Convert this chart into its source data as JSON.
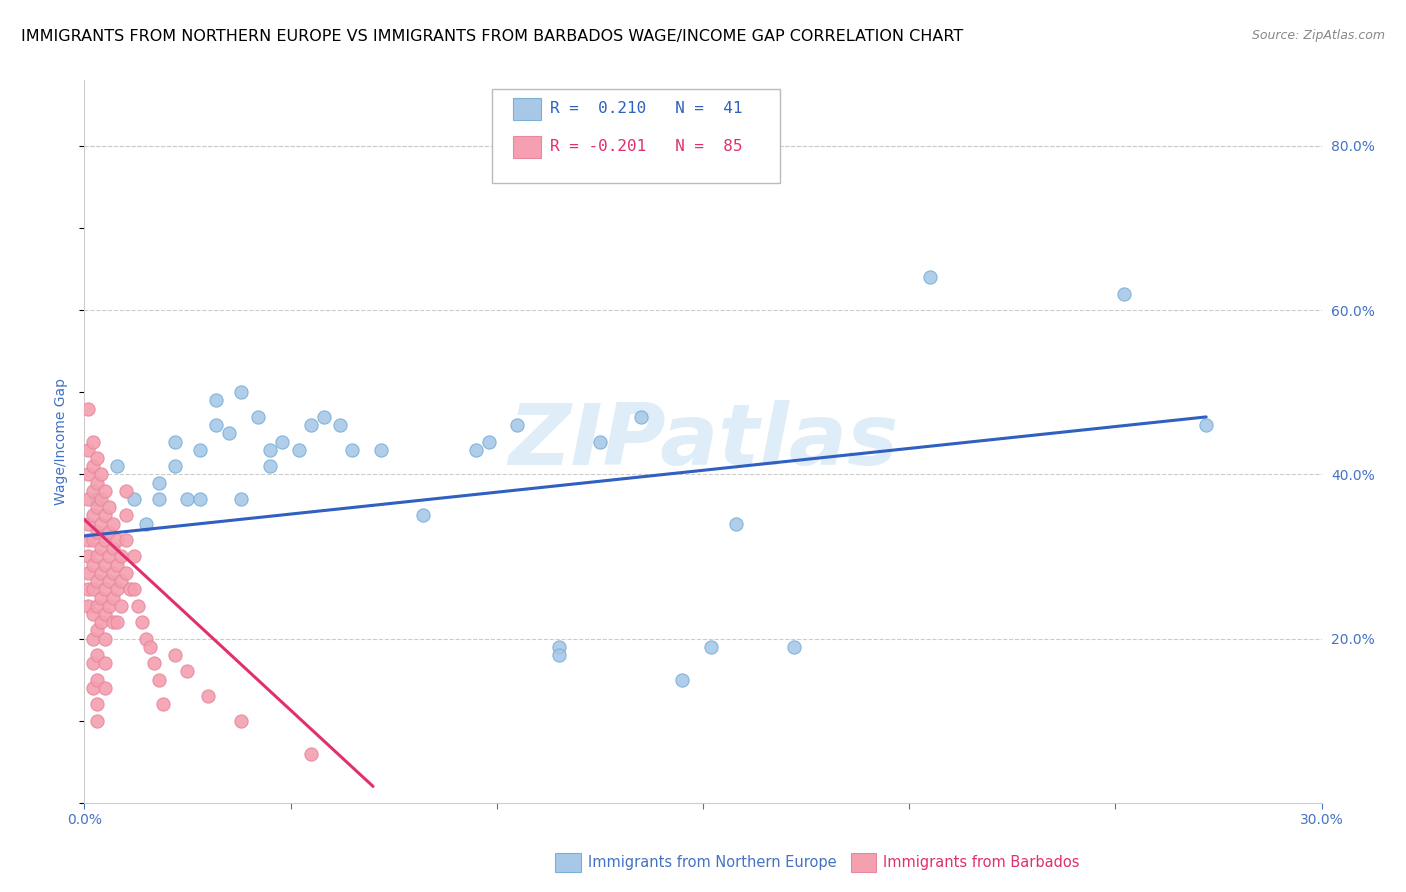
{
  "title": "IMMIGRANTS FROM NORTHERN EUROPE VS IMMIGRANTS FROM BARBADOS WAGE/INCOME GAP CORRELATION CHART",
  "source": "Source: ZipAtlas.com",
  "ylabel": "Wage/Income Gap",
  "xlim": [
    0.0,
    0.3
  ],
  "ylim": [
    0.0,
    0.88
  ],
  "xticks": [
    0.0,
    0.05,
    0.1,
    0.15,
    0.2,
    0.25,
    0.3
  ],
  "xticklabels": [
    "0.0%",
    "",
    "",
    "",
    "",
    "",
    "30.0%"
  ],
  "yticks_right": [
    0.2,
    0.4,
    0.6,
    0.8
  ],
  "ytick_labels_right": [
    "20.0%",
    "40.0%",
    "60.0%",
    "80.0%"
  ],
  "blue_color": "#a8c8e8",
  "pink_color": "#f4a0b0",
  "blue_line_color": "#3060c0",
  "pink_line_color": "#e03070",
  "watermark": "ZIPatlas",
  "blue_scatter_x": [
    0.003,
    0.008,
    0.012,
    0.015,
    0.018,
    0.018,
    0.022,
    0.022,
    0.025,
    0.028,
    0.028,
    0.032,
    0.032,
    0.035,
    0.038,
    0.038,
    0.042,
    0.045,
    0.045,
    0.048,
    0.052,
    0.055,
    0.058,
    0.062,
    0.065,
    0.072,
    0.082,
    0.095,
    0.098,
    0.105,
    0.115,
    0.115,
    0.125,
    0.135,
    0.145,
    0.152,
    0.158,
    0.172,
    0.205,
    0.252,
    0.272
  ],
  "blue_scatter_y": [
    0.37,
    0.41,
    0.37,
    0.34,
    0.39,
    0.37,
    0.44,
    0.41,
    0.37,
    0.43,
    0.37,
    0.49,
    0.46,
    0.45,
    0.37,
    0.5,
    0.47,
    0.43,
    0.41,
    0.44,
    0.43,
    0.46,
    0.47,
    0.46,
    0.43,
    0.43,
    0.35,
    0.43,
    0.44,
    0.46,
    0.19,
    0.18,
    0.44,
    0.47,
    0.15,
    0.19,
    0.34,
    0.19,
    0.64,
    0.62,
    0.46
  ],
  "pink_scatter_x": [
    0.001,
    0.001,
    0.001,
    0.001,
    0.001,
    0.001,
    0.001,
    0.001,
    0.001,
    0.001,
    0.002,
    0.002,
    0.002,
    0.002,
    0.002,
    0.002,
    0.002,
    0.002,
    0.002,
    0.002,
    0.002,
    0.003,
    0.003,
    0.003,
    0.003,
    0.003,
    0.003,
    0.003,
    0.003,
    0.003,
    0.003,
    0.003,
    0.003,
    0.004,
    0.004,
    0.004,
    0.004,
    0.004,
    0.004,
    0.004,
    0.005,
    0.005,
    0.005,
    0.005,
    0.005,
    0.005,
    0.005,
    0.005,
    0.005,
    0.006,
    0.006,
    0.006,
    0.006,
    0.006,
    0.007,
    0.007,
    0.007,
    0.007,
    0.007,
    0.008,
    0.008,
    0.008,
    0.008,
    0.009,
    0.009,
    0.009,
    0.01,
    0.01,
    0.01,
    0.01,
    0.011,
    0.012,
    0.012,
    0.013,
    0.014,
    0.015,
    0.016,
    0.017,
    0.018,
    0.019,
    0.022,
    0.025,
    0.03,
    0.038,
    0.055
  ],
  "pink_scatter_y": [
    0.48,
    0.43,
    0.4,
    0.37,
    0.34,
    0.32,
    0.3,
    0.28,
    0.26,
    0.24,
    0.44,
    0.41,
    0.38,
    0.35,
    0.32,
    0.29,
    0.26,
    0.23,
    0.2,
    0.17,
    0.14,
    0.42,
    0.39,
    0.36,
    0.33,
    0.3,
    0.27,
    0.24,
    0.21,
    0.18,
    0.15,
    0.12,
    0.1,
    0.4,
    0.37,
    0.34,
    0.31,
    0.28,
    0.25,
    0.22,
    0.38,
    0.35,
    0.32,
    0.29,
    0.26,
    0.23,
    0.2,
    0.17,
    0.14,
    0.36,
    0.33,
    0.3,
    0.27,
    0.24,
    0.34,
    0.31,
    0.28,
    0.25,
    0.22,
    0.32,
    0.29,
    0.26,
    0.22,
    0.3,
    0.27,
    0.24,
    0.38,
    0.35,
    0.32,
    0.28,
    0.26,
    0.3,
    0.26,
    0.24,
    0.22,
    0.2,
    0.19,
    0.17,
    0.15,
    0.12,
    0.18,
    0.16,
    0.13,
    0.1,
    0.06
  ],
  "blue_trend_x": [
    0.0,
    0.272
  ],
  "blue_trend_y": [
    0.325,
    0.47
  ],
  "pink_trend_x": [
    0.0,
    0.07
  ],
  "pink_trend_y": [
    0.345,
    0.02
  ],
  "background_color": "#ffffff",
  "grid_color": "#cccccc",
  "axis_color": "#4472c4",
  "title_fontsize": 11.5,
  "axis_label_fontsize": 10,
  "tick_fontsize": 10
}
